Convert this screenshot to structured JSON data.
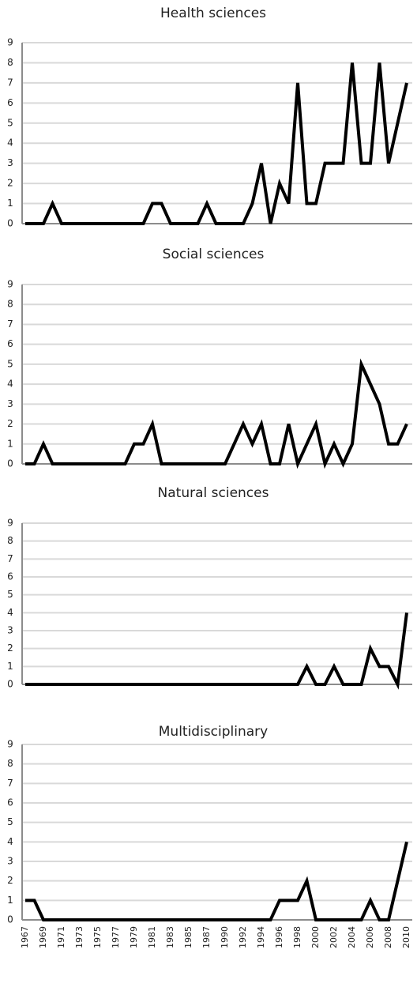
{
  "chart_data": [
    {
      "type": "line",
      "title": "Health sciences",
      "color": "#000000",
      "grid": true,
      "ylim": [
        0,
        9
      ],
      "yticks": [
        0,
        1,
        2,
        3,
        4,
        5,
        6,
        7,
        8,
        9
      ],
      "values": [
        0,
        0,
        0,
        1,
        0,
        0,
        0,
        0,
        0,
        0,
        0,
        0,
        0,
        0,
        1,
        1,
        0,
        0,
        0,
        0,
        1,
        0,
        0,
        0,
        0,
        1,
        3,
        0,
        2,
        1,
        7,
        1,
        1,
        3,
        3,
        3,
        8,
        3,
        3,
        8,
        3,
        5,
        7
      ]
    },
    {
      "type": "line",
      "title": "Social sciences",
      "color": "#000000",
      "grid": true,
      "ylim": [
        0,
        9
      ],
      "yticks": [
        0,
        1,
        2,
        3,
        4,
        5,
        6,
        7,
        8,
        9
      ],
      "values": [
        0,
        0,
        1,
        0,
        0,
        0,
        0,
        0,
        0,
        0,
        0,
        0,
        1,
        1,
        2,
        0,
        0,
        0,
        0,
        0,
        0,
        0,
        0,
        1,
        2,
        1,
        2,
        0,
        0,
        2,
        0,
        1,
        2,
        0,
        1,
        0,
        1,
        5,
        4,
        3,
        1,
        1,
        2
      ]
    },
    {
      "type": "line",
      "title": "Natural sciences",
      "color": "#000000",
      "grid": true,
      "ylim": [
        0,
        9
      ],
      "yticks": [
        0,
        1,
        2,
        3,
        4,
        5,
        6,
        7,
        8,
        9
      ],
      "values": [
        0,
        0,
        0,
        0,
        0,
        0,
        0,
        0,
        0,
        0,
        0,
        0,
        0,
        0,
        0,
        0,
        0,
        0,
        0,
        0,
        0,
        0,
        0,
        0,
        0,
        0,
        0,
        0,
        0,
        0,
        0,
        1,
        0,
        0,
        1,
        0,
        0,
        0,
        2,
        1,
        1,
        0,
        4
      ]
    },
    {
      "type": "line",
      "title": "Multidisciplinary",
      "color": "#000000",
      "grid": true,
      "ylim": [
        0,
        9
      ],
      "yticks": [
        0,
        1,
        2,
        3,
        4,
        5,
        6,
        7,
        8,
        9
      ],
      "categories": [
        "1967",
        null,
        "1969",
        null,
        "1971",
        null,
        "1973",
        null,
        "1975",
        null,
        "1977",
        null,
        "1979",
        null,
        "1981",
        null,
        "1983",
        null,
        "1985",
        null,
        "1987",
        null,
        "1990",
        null,
        "1992",
        null,
        "1994",
        null,
        "1996",
        null,
        "1998",
        null,
        "2000",
        null,
        "2002",
        null,
        "2004",
        null,
        "2006",
        null,
        "2008",
        null,
        "2010"
      ],
      "values": [
        1,
        1,
        0,
        0,
        0,
        0,
        0,
        0,
        0,
        0,
        0,
        0,
        0,
        0,
        0,
        0,
        0,
        0,
        0,
        0,
        0,
        0,
        0,
        0,
        0,
        0,
        0,
        0,
        1,
        1,
        1,
        2,
        0,
        0,
        0,
        0,
        0,
        0,
        1,
        0,
        0,
        2,
        4
      ]
    }
  ]
}
